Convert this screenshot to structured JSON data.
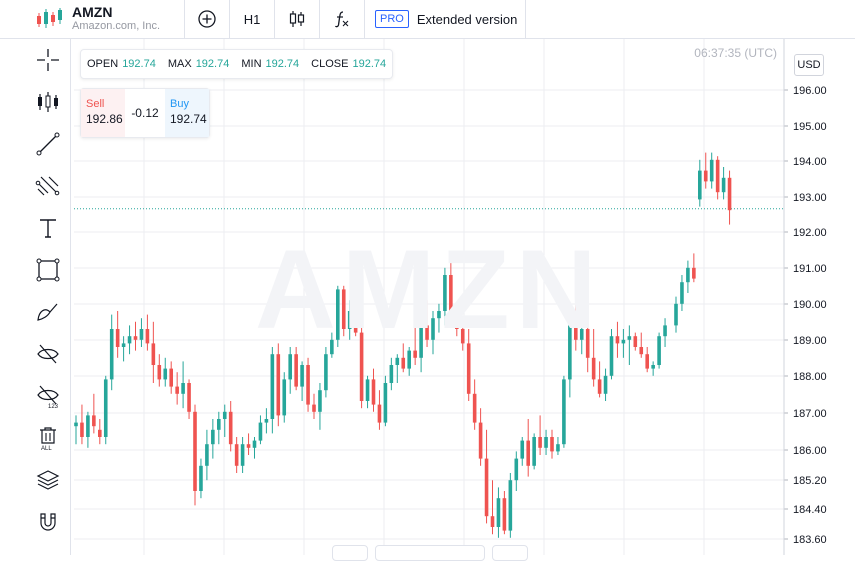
{
  "header": {
    "ticker": "AMZN",
    "company": "Amazon.com, Inc.",
    "interval": "H1",
    "pro_label": "PRO",
    "extended_label": "Extended version"
  },
  "sidebar_tools": [
    "crosshair-icon",
    "candles-icon",
    "trend-line-icon",
    "fib-icon",
    "text-icon",
    "rectangle-icon",
    "brush-icon",
    "hide-drawings-icon",
    "hide-indicators-icon",
    "delete-all-icon",
    "layers-icon",
    "magnet-icon"
  ],
  "ohlc": {
    "open_label": "OPEN",
    "open": "192.74",
    "max_label": "MAX",
    "max": "192.74",
    "min_label": "MIN",
    "min": "192.74",
    "close_label": "CLOSE",
    "close": "192.74"
  },
  "trade": {
    "sell_label": "Sell",
    "sell_price": "192.86",
    "spread": "-0.12",
    "buy_label": "Buy",
    "buy_price": "192.74"
  },
  "clock": "06:37:35 (UTC)",
  "currency": "USD",
  "watermark": "AMZN",
  "colors": {
    "up": "#26a69a",
    "down": "#ef5350",
    "grid": "#eceef2",
    "price_line": "#26a69a"
  },
  "chart_data": {
    "type": "candlestick",
    "ylim": [
      183.4,
      197.1
    ],
    "y_ticks": [
      "196.00",
      "195.00",
      "194.00",
      "193.00",
      "192.00",
      "191.00",
      "190.00",
      "189.00",
      "188.00",
      "187.00",
      "186.00",
      "185.20",
      "184.40",
      "183.60"
    ],
    "current_price": 192.74,
    "candles": [
      {
        "o": 186.7,
        "h": 187.0,
        "l": 186.2,
        "c": 186.8
      },
      {
        "o": 186.8,
        "h": 187.3,
        "l": 186.2,
        "c": 186.4
      },
      {
        "o": 186.4,
        "h": 187.1,
        "l": 186.1,
        "c": 187.0
      },
      {
        "o": 187.0,
        "h": 187.6,
        "l": 186.5,
        "c": 186.7
      },
      {
        "o": 186.6,
        "h": 186.9,
        "l": 186.2,
        "c": 186.4
      },
      {
        "o": 186.4,
        "h": 188.1,
        "l": 186.2,
        "c": 188.0
      },
      {
        "o": 188.0,
        "h": 189.8,
        "l": 187.7,
        "c": 189.4
      },
      {
        "o": 189.4,
        "h": 189.9,
        "l": 188.6,
        "c": 188.9
      },
      {
        "o": 188.9,
        "h": 189.2,
        "l": 188.5,
        "c": 189.0
      },
      {
        "o": 189.0,
        "h": 189.5,
        "l": 188.7,
        "c": 189.2
      },
      {
        "o": 189.2,
        "h": 189.6,
        "l": 188.8,
        "c": 189.1
      },
      {
        "o": 189.1,
        "h": 189.7,
        "l": 188.9,
        "c": 189.4
      },
      {
        "o": 189.4,
        "h": 189.8,
        "l": 188.8,
        "c": 189.0
      },
      {
        "o": 189.0,
        "h": 189.6,
        "l": 187.9,
        "c": 188.4
      },
      {
        "o": 188.4,
        "h": 188.7,
        "l": 187.8,
        "c": 188.0
      },
      {
        "o": 188.0,
        "h": 188.6,
        "l": 187.8,
        "c": 188.3
      },
      {
        "o": 188.3,
        "h": 188.5,
        "l": 187.6,
        "c": 187.8
      },
      {
        "o": 187.8,
        "h": 188.2,
        "l": 187.3,
        "c": 187.6
      },
      {
        "o": 187.6,
        "h": 188.5,
        "l": 187.2,
        "c": 187.9
      },
      {
        "o": 187.9,
        "h": 188.0,
        "l": 186.9,
        "c": 187.1
      },
      {
        "o": 187.1,
        "h": 187.3,
        "l": 184.5,
        "c": 184.9
      },
      {
        "o": 184.9,
        "h": 185.8,
        "l": 184.7,
        "c": 185.6
      },
      {
        "o": 185.6,
        "h": 186.6,
        "l": 185.2,
        "c": 186.2
      },
      {
        "o": 186.2,
        "h": 186.9,
        "l": 185.8,
        "c": 186.6
      },
      {
        "o": 186.6,
        "h": 187.1,
        "l": 186.2,
        "c": 186.9
      },
      {
        "o": 186.9,
        "h": 187.3,
        "l": 186.4,
        "c": 187.1
      },
      {
        "o": 187.1,
        "h": 187.4,
        "l": 186.0,
        "c": 186.2
      },
      {
        "o": 186.2,
        "h": 186.4,
        "l": 185.4,
        "c": 185.6
      },
      {
        "o": 185.6,
        "h": 186.4,
        "l": 185.4,
        "c": 186.2
      },
      {
        "o": 186.2,
        "h": 186.5,
        "l": 185.9,
        "c": 186.1
      },
      {
        "o": 186.1,
        "h": 186.4,
        "l": 185.8,
        "c": 186.3
      },
      {
        "o": 186.3,
        "h": 187.0,
        "l": 186.2,
        "c": 186.8
      },
      {
        "o": 186.8,
        "h": 187.2,
        "l": 186.5,
        "c": 186.9
      },
      {
        "o": 186.9,
        "h": 188.9,
        "l": 186.5,
        "c": 188.7
      },
      {
        "o": 188.7,
        "h": 189.0,
        "l": 186.7,
        "c": 187.0
      },
      {
        "o": 187.0,
        "h": 188.2,
        "l": 186.8,
        "c": 188.0
      },
      {
        "o": 188.0,
        "h": 188.9,
        "l": 187.6,
        "c": 188.7
      },
      {
        "o": 188.7,
        "h": 188.9,
        "l": 187.7,
        "c": 187.8
      },
      {
        "o": 187.8,
        "h": 188.5,
        "l": 187.4,
        "c": 188.4
      },
      {
        "o": 188.4,
        "h": 188.6,
        "l": 187.1,
        "c": 187.3
      },
      {
        "o": 187.3,
        "h": 187.6,
        "l": 186.9,
        "c": 187.1
      },
      {
        "o": 187.1,
        "h": 187.9,
        "l": 186.6,
        "c": 187.7
      },
      {
        "o": 187.7,
        "h": 188.9,
        "l": 187.5,
        "c": 188.7
      },
      {
        "o": 188.7,
        "h": 189.3,
        "l": 188.6,
        "c": 189.1
      },
      {
        "o": 189.1,
        "h": 190.6,
        "l": 188.9,
        "c": 190.5
      },
      {
        "o": 190.5,
        "h": 190.6,
        "l": 189.2,
        "c": 189.4
      },
      {
        "o": 189.4,
        "h": 190.2,
        "l": 189.1,
        "c": 189.9
      },
      {
        "o": 189.9,
        "h": 190.4,
        "l": 189.2,
        "c": 189.3
      },
      {
        "o": 189.3,
        "h": 189.7,
        "l": 187.2,
        "c": 187.4
      },
      {
        "o": 187.4,
        "h": 188.1,
        "l": 187.2,
        "c": 188.0
      },
      {
        "o": 188.0,
        "h": 188.3,
        "l": 187.1,
        "c": 187.3
      },
      {
        "o": 187.3,
        "h": 187.7,
        "l": 186.6,
        "c": 186.8
      },
      {
        "o": 186.8,
        "h": 188.1,
        "l": 186.7,
        "c": 187.9
      },
      {
        "o": 187.9,
        "h": 188.6,
        "l": 187.7,
        "c": 188.4
      },
      {
        "o": 188.4,
        "h": 188.7,
        "l": 187.9,
        "c": 188.6
      },
      {
        "o": 188.6,
        "h": 189.0,
        "l": 188.2,
        "c": 188.3
      },
      {
        "o": 188.3,
        "h": 188.9,
        "l": 188.1,
        "c": 188.8
      },
      {
        "o": 188.8,
        "h": 189.5,
        "l": 188.4,
        "c": 188.6
      },
      {
        "o": 188.6,
        "h": 189.7,
        "l": 188.2,
        "c": 189.5
      },
      {
        "o": 189.5,
        "h": 190.2,
        "l": 188.9,
        "c": 189.1
      },
      {
        "o": 189.1,
        "h": 189.9,
        "l": 188.7,
        "c": 189.7
      },
      {
        "o": 189.7,
        "h": 190.1,
        "l": 189.3,
        "c": 189.9
      },
      {
        "o": 189.9,
        "h": 191.1,
        "l": 189.5,
        "c": 190.9
      },
      {
        "o": 190.9,
        "h": 191.4,
        "l": 189.7,
        "c": 189.8
      },
      {
        "o": 189.8,
        "h": 190.0,
        "l": 189.2,
        "c": 189.4
      },
      {
        "o": 189.4,
        "h": 189.6,
        "l": 188.8,
        "c": 189.0
      },
      {
        "o": 189.0,
        "h": 189.4,
        "l": 187.4,
        "c": 187.6
      },
      {
        "o": 187.6,
        "h": 188.0,
        "l": 186.6,
        "c": 186.8
      },
      {
        "o": 186.8,
        "h": 187.2,
        "l": 185.6,
        "c": 185.8
      },
      {
        "o": 185.8,
        "h": 186.6,
        "l": 184.0,
        "c": 184.2
      },
      {
        "o": 184.2,
        "h": 185.2,
        "l": 183.7,
        "c": 183.9
      },
      {
        "o": 183.9,
        "h": 185.0,
        "l": 183.6,
        "c": 184.7
      },
      {
        "o": 184.7,
        "h": 184.9,
        "l": 183.7,
        "c": 183.8
      },
      {
        "o": 183.8,
        "h": 185.4,
        "l": 183.6,
        "c": 185.2
      },
      {
        "o": 185.2,
        "h": 186.0,
        "l": 184.9,
        "c": 185.8
      },
      {
        "o": 185.8,
        "h": 186.4,
        "l": 185.6,
        "c": 186.3
      },
      {
        "o": 186.3,
        "h": 186.9,
        "l": 185.3,
        "c": 185.6
      },
      {
        "o": 185.6,
        "h": 186.5,
        "l": 185.5,
        "c": 186.4
      },
      {
        "o": 186.4,
        "h": 187.0,
        "l": 185.9,
        "c": 186.1
      },
      {
        "o": 186.1,
        "h": 186.6,
        "l": 185.9,
        "c": 186.4
      },
      {
        "o": 186.4,
        "h": 186.6,
        "l": 185.8,
        "c": 186.0
      },
      {
        "o": 186.0,
        "h": 186.4,
        "l": 185.9,
        "c": 186.2
      },
      {
        "o": 186.2,
        "h": 188.1,
        "l": 186.1,
        "c": 188.0
      },
      {
        "o": 188.0,
        "h": 189.8,
        "l": 187.5,
        "c": 189.5
      },
      {
        "o": 189.5,
        "h": 190.2,
        "l": 188.8,
        "c": 189.1
      },
      {
        "o": 189.1,
        "h": 189.7,
        "l": 188.7,
        "c": 189.4
      },
      {
        "o": 189.4,
        "h": 189.7,
        "l": 188.2,
        "c": 188.6
      },
      {
        "o": 188.6,
        "h": 189.4,
        "l": 187.8,
        "c": 188.0
      },
      {
        "o": 188.0,
        "h": 188.5,
        "l": 187.5,
        "c": 187.6
      },
      {
        "o": 187.6,
        "h": 188.3,
        "l": 187.4,
        "c": 188.1
      },
      {
        "o": 188.1,
        "h": 189.4,
        "l": 188.0,
        "c": 189.2
      },
      {
        "o": 189.2,
        "h": 189.6,
        "l": 188.6,
        "c": 189.0
      },
      {
        "o": 189.0,
        "h": 189.4,
        "l": 188.6,
        "c": 189.1
      },
      {
        "o": 189.1,
        "h": 189.5,
        "l": 188.4,
        "c": 189.2
      },
      {
        "o": 189.2,
        "h": 189.3,
        "l": 188.8,
        "c": 188.9
      },
      {
        "o": 188.9,
        "h": 189.3,
        "l": 188.6,
        "c": 188.7
      },
      {
        "o": 188.7,
        "h": 188.9,
        "l": 188.2,
        "c": 188.3
      },
      {
        "o": 188.3,
        "h": 188.5,
        "l": 188.1,
        "c": 188.4
      },
      {
        "o": 188.4,
        "h": 189.3,
        "l": 188.3,
        "c": 189.2
      },
      {
        "o": 189.2,
        "h": 189.7,
        "l": 188.9,
        "c": 189.5
      },
      {
        "o": 189.5,
        "h": 190.3,
        "l": 189.3,
        "c": 190.1
      },
      {
        "o": 190.1,
        "h": 190.9,
        "l": 189.9,
        "c": 190.7
      },
      {
        "o": 190.7,
        "h": 191.3,
        "l": 190.4,
        "c": 191.1
      },
      {
        "o": 191.1,
        "h": 191.5,
        "l": 190.7,
        "c": 190.8
      },
      {
        "o": 193.0,
        "h": 194.1,
        "l": 192.8,
        "c": 193.8
      },
      {
        "o": 193.8,
        "h": 194.3,
        "l": 193.3,
        "c": 193.5
      },
      {
        "o": 193.5,
        "h": 194.3,
        "l": 193.3,
        "c": 194.1
      },
      {
        "o": 194.1,
        "h": 194.2,
        "l": 193.0,
        "c": 193.2
      },
      {
        "o": 193.2,
        "h": 193.9,
        "l": 193.0,
        "c": 193.6
      },
      {
        "o": 193.6,
        "h": 193.8,
        "l": 192.3,
        "c": 192.7
      }
    ]
  }
}
